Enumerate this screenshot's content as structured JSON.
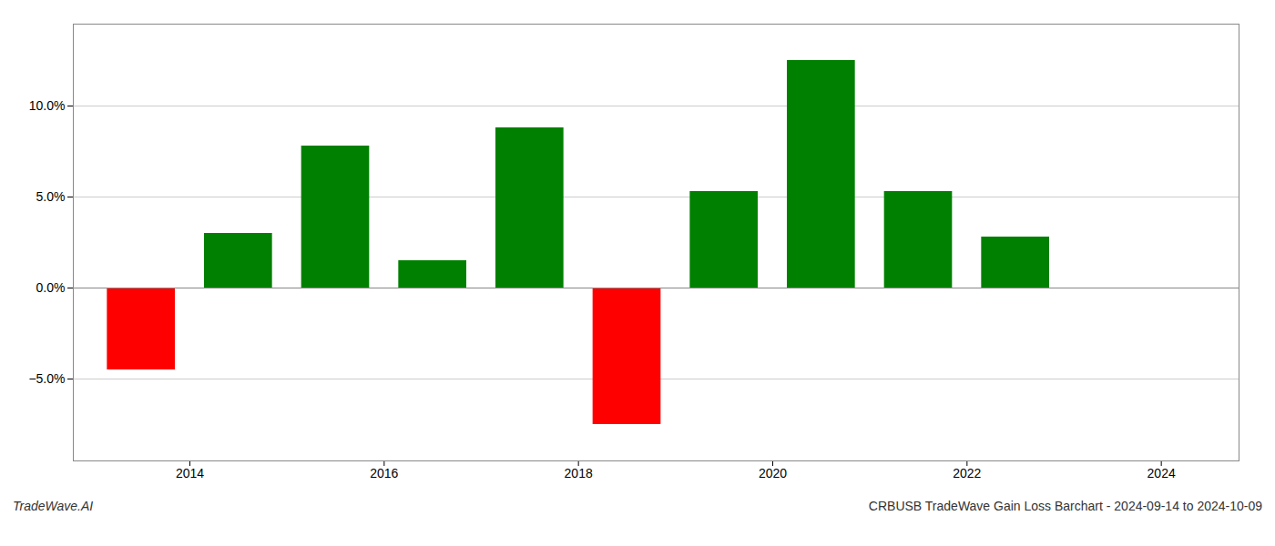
{
  "chart_data": {
    "type": "bar",
    "x": [
      2013.5,
      2014.5,
      2015.5,
      2016.5,
      2017.5,
      2018.5,
      2019.5,
      2020.5,
      2021.5,
      2022.5,
      2023.5
    ],
    "values": [
      -4.5,
      3.0,
      7.8,
      1.5,
      8.8,
      -7.5,
      5.3,
      12.5,
      5.3,
      2.8,
      0.0
    ],
    "colors": [
      "#ff0000",
      "#008000",
      "#008000",
      "#008000",
      "#008000",
      "#ff0000",
      "#008000",
      "#008000",
      "#008000",
      "#008000",
      "#008000"
    ],
    "xlim": [
      2012.8,
      2024.8
    ],
    "xticks": [
      2014,
      2016,
      2018,
      2020,
      2022,
      2024
    ],
    "ylim": [
      -9.5,
      14.5
    ],
    "yticks": [
      {
        "value": -5.0,
        "label": "−5.0%"
      },
      {
        "value": 0.0,
        "label": "0.0%"
      },
      {
        "value": 5.0,
        "label": "5.0%"
      },
      {
        "value": 10.0,
        "label": "10.0%"
      }
    ],
    "grid": true,
    "annotations": [
      "TradeWave.AI",
      "CRBUSB TradeWave Gain Loss Barchart - 2024-09-14 to 2024-10-09"
    ]
  }
}
